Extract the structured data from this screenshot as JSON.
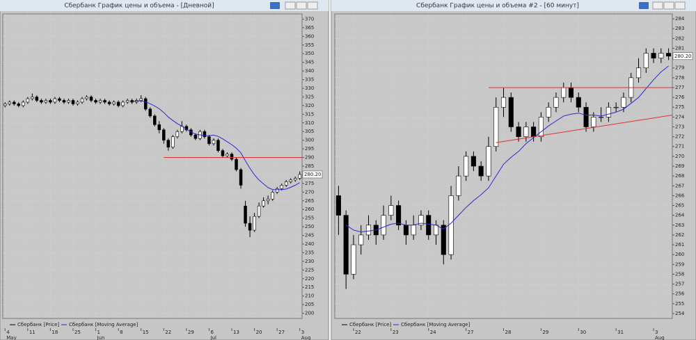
{
  "chart_data": [
    {
      "type": "candlestick",
      "title": "Сбербанк График цены и объема - [Дневной]",
      "ylim": [
        197,
        373
      ],
      "yticks": [
        370,
        365,
        360,
        355,
        350,
        345,
        340,
        335,
        330,
        325,
        320,
        315,
        310,
        305,
        300,
        295,
        290,
        285,
        280,
        275,
        270,
        265,
        260,
        255,
        250,
        245,
        240,
        235,
        230,
        225,
        220,
        215,
        210,
        205,
        200
      ],
      "grid": true,
      "xticks": [
        {
          "value": 0,
          "label": "4"
        },
        {
          "value": 5,
          "label": "11"
        },
        {
          "value": 10,
          "label": "18"
        },
        {
          "value": 15,
          "label": "25"
        },
        {
          "value": 20,
          "label": "1"
        },
        {
          "value": 25,
          "label": "8"
        },
        {
          "value": 30,
          "label": "15"
        },
        {
          "value": 35,
          "label": "22"
        },
        {
          "value": 40,
          "label": "29"
        },
        {
          "value": 45,
          "label": "6"
        },
        {
          "value": 50,
          "label": "13"
        },
        {
          "value": 55,
          "label": "20"
        },
        {
          "value": 60,
          "label": "27"
        },
        {
          "value": 65,
          "label": "3"
        }
      ],
      "xmonths": [
        {
          "value": 0,
          "label": "May"
        },
        {
          "value": 20,
          "label": "Jun"
        },
        {
          "value": 45,
          "label": "Jul"
        },
        {
          "value": 65,
          "label": "Aug"
        }
      ],
      "last_price": {
        "value": 280.2,
        "label": "280.20"
      },
      "series": [
        {
          "name": "Сбербанк [Price]",
          "color": "#000000",
          "ohlc": [
            [
              320,
              322,
              319,
              321
            ],
            [
              321,
              323,
              320,
              322
            ],
            [
              322,
              323,
              320,
              321
            ],
            [
              321,
              322,
              319,
              320
            ],
            [
              320,
              323,
              319,
              322
            ],
            [
              322,
              325,
              321,
              324
            ],
            [
              324,
              327,
              323,
              325
            ],
            [
              325,
              326,
              322,
              323
            ],
            [
              323,
              324,
              321,
              322
            ],
            [
              322,
              324,
              321,
              323
            ],
            [
              323,
              324,
              321,
              322
            ],
            [
              322,
              325,
              321,
              324
            ],
            [
              324,
              325,
              322,
              323
            ],
            [
              323,
              324,
              321,
              322
            ],
            [
              322,
              324,
              321,
              323
            ],
            [
              323,
              324,
              320,
              321
            ],
            [
              321,
              323,
              320,
              322
            ],
            [
              322,
              325,
              321,
              324
            ],
            [
              324,
              326,
              323,
              325
            ],
            [
              325,
              326,
              322,
              323
            ],
            [
              323,
              324,
              321,
              322
            ],
            [
              322,
              324,
              321,
              323
            ],
            [
              323,
              324,
              321,
              322
            ],
            [
              322,
              323,
              320,
              321
            ],
            [
              321,
              323,
              320,
              322
            ],
            [
              322,
              323,
              319,
              320
            ],
            [
              320,
              323,
              319,
              322
            ],
            [
              322,
              324,
              321,
              323
            ],
            [
              323,
              324,
              321,
              322
            ],
            [
              322,
              324,
              321,
              323
            ],
            [
              323,
              326,
              322,
              324
            ],
            [
              324,
              325,
              317,
              318
            ],
            [
              318,
              319,
              313,
              314
            ],
            [
              314,
              315,
              308,
              309
            ],
            [
              309,
              311,
              304,
              306
            ],
            [
              306,
              307,
              298,
              300
            ],
            [
              300,
              301,
              294,
              296
            ],
            [
              296,
              303,
              295,
              302
            ],
            [
              302,
              306,
              301,
              305
            ],
            [
              305,
              311,
              304,
              308
            ],
            [
              308,
              309,
              305,
              306
            ],
            [
              306,
              307,
              302,
              303
            ],
            [
              303,
              304,
              300,
              301
            ],
            [
              301,
              306,
              300,
              305
            ],
            [
              305,
              306,
              301,
              302
            ],
            [
              302,
              303,
              297,
              298
            ],
            [
              298,
              301,
              297,
              300
            ],
            [
              300,
              301,
              293,
              294
            ],
            [
              294,
              295,
              290,
              291
            ],
            [
              291,
              293,
              290,
              292
            ],
            [
              292,
              293,
              288,
              289
            ],
            [
              289,
              290,
              282,
              283
            ],
            [
              283,
              284,
              272,
              274
            ],
            [
              262,
              265,
              250,
              252
            ],
            [
              252,
              256,
              244,
              248
            ],
            [
              248,
              258,
              247,
              256
            ],
            [
              256,
              264,
              255,
              262
            ],
            [
              262,
              267,
              261,
              265
            ],
            [
              265,
              268,
              263,
              266
            ],
            [
              266,
              271,
              265,
              270
            ],
            [
              270,
              273,
              269,
              272
            ],
            [
              272,
              275,
              271,
              274
            ],
            [
              274,
              277,
              273,
              276
            ],
            [
              276,
              278,
              275,
              277
            ],
            [
              277,
              279,
              276,
              278
            ],
            [
              278,
              282,
              277,
              280.2
            ]
          ]
        },
        {
          "name": "Сбербанк [Moving Average]",
          "color": "#2a2ad0",
          "values": [
            null,
            null,
            null,
            null,
            null,
            null,
            null,
            null,
            null,
            null,
            null,
            null,
            null,
            null,
            null,
            null,
            null,
            null,
            null,
            null,
            null,
            null,
            null,
            null,
            null,
            null,
            null,
            null,
            322.5,
            322.6,
            322.8,
            322.2,
            321.1,
            319.8,
            318.2,
            316.0,
            313.4,
            311.4,
            309.6,
            308.1,
            306.3,
            304.8,
            303.5,
            303.1,
            302.7,
            302.6,
            303.0,
            302.2,
            300.8,
            299.1,
            297.4,
            295.4,
            292.7,
            288.1,
            283.8,
            280.0,
            277.0,
            274.8,
            272.6,
            271.5,
            271.4,
            271.5,
            271.8,
            272.8,
            274.0,
            275.5
          ]
        }
      ],
      "lines": [
        {
          "color": "#e03030",
          "x": [
            35,
            66
          ],
          "y": [
            290,
            290
          ]
        }
      ]
    },
    {
      "type": "candlestick",
      "title": "Сбербанк График цены и объема #2 - [60 минут]",
      "ylim": [
        253.5,
        284.5
      ],
      "yticks": [
        284,
        283,
        282,
        281,
        280,
        279,
        278,
        277,
        276,
        275,
        274,
        273,
        272,
        271,
        270,
        269,
        268,
        267,
        266,
        265,
        264,
        263,
        262,
        261,
        260,
        259,
        258,
        257,
        256,
        255,
        254
      ],
      "grid": true,
      "xticks": [
        {
          "value": 2,
          "label": "22"
        },
        {
          "value": 7,
          "label": "23"
        },
        {
          "value": 12,
          "label": "24"
        },
        {
          "value": 17,
          "label": "27"
        },
        {
          "value": 22,
          "label": "28"
        },
        {
          "value": 27,
          "label": "29"
        },
        {
          "value": 32,
          "label": "30"
        },
        {
          "value": 37,
          "label": "31"
        },
        {
          "value": 42,
          "label": "3"
        }
      ],
      "xmonths": [
        {
          "value": 42,
          "label": "Aug"
        }
      ],
      "last_price": {
        "value": 280.2,
        "label": "280.20"
      },
      "series": [
        {
          "name": "Сбербанк [Price]",
          "color": "#000000",
          "ohlc": [
            [
              266,
              267,
              262,
              264
            ],
            [
              264,
              264.5,
              256.5,
              258
            ],
            [
              258,
              262,
              257.5,
              261
            ],
            [
              261,
              263,
              260,
              262
            ],
            [
              262,
              264,
              261.5,
              263
            ],
            [
              263,
              263.5,
              261,
              262
            ],
            [
              262,
              265,
              261.5,
              264
            ],
            [
              264,
              266,
              263.5,
              265
            ],
            [
              265,
              265.5,
              262.5,
              263
            ],
            [
              263,
              263.5,
              261,
              262
            ],
            [
              262,
              264,
              261.5,
              263
            ],
            [
              263,
              264.5,
              262.5,
              264
            ],
            [
              264,
              264.5,
              261.5,
              262
            ],
            [
              262,
              263.5,
              261,
              263
            ],
            [
              263,
              263.5,
              259,
              260
            ],
            [
              260,
              267,
              259.5,
              266
            ],
            [
              266,
              269,
              265.5,
              268
            ],
            [
              268,
              270.5,
              267.5,
              270
            ],
            [
              270,
              270.5,
              268.5,
              269
            ],
            [
              269,
              269.5,
              267.5,
              268
            ],
            [
              268,
              272,
              267.5,
              271
            ],
            [
              271,
              276,
              270.5,
              275
            ],
            [
              275,
              277,
              274,
              276
            ],
            [
              276,
              276.5,
              272.5,
              273
            ],
            [
              273,
              273.5,
              271.5,
              272
            ],
            [
              272,
              273.5,
              271.5,
              273
            ],
            [
              273,
              273.5,
              271.5,
              272
            ],
            [
              272,
              274.5,
              271.5,
              274
            ],
            [
              274,
              275.5,
              273.5,
              275
            ],
            [
              275,
              276.5,
              274.5,
              276
            ],
            [
              276,
              277.5,
              275.5,
              277
            ],
            [
              277,
              277.5,
              275.5,
              276
            ],
            [
              276,
              276.5,
              274.5,
              275
            ],
            [
              275,
              275.5,
              272.5,
              273
            ],
            [
              273,
              274.5,
              272.5,
              274
            ],
            [
              274,
              275,
              273.5,
              274
            ],
            [
              274,
              275.5,
              273.5,
              275
            ],
            [
              275,
              275.5,
              274.5,
              275
            ],
            [
              275,
              276.5,
              274.5,
              276
            ],
            [
              276,
              278.5,
              275.5,
              278
            ],
            [
              278,
              280,
              277.5,
              279
            ],
            [
              279,
              281,
              278.5,
              280.5
            ],
            [
              280.5,
              281,
              279.5,
              280
            ],
            [
              280,
              281,
              279.5,
              280.5
            ],
            [
              280.5,
              281,
              279.8,
              280.2
            ]
          ]
        },
        {
          "name": "Сбербанк [Moving Average]",
          "color": "#2a2ad0",
          "values": [
            null,
            263.0,
            262.5,
            262.3,
            262.4,
            262.5,
            262.8,
            263.1,
            263.2,
            263.0,
            263.0,
            263.2,
            263.1,
            263.0,
            262.6,
            263.2,
            264.0,
            264.8,
            265.5,
            266.1,
            266.8,
            268.0,
            269.2,
            269.9,
            270.5,
            271.3,
            271.9,
            272.5,
            273.1,
            273.6,
            274.1,
            274.3,
            274.4,
            274.2,
            274.2,
            274.1,
            274.3,
            274.5,
            274.8,
            275.4,
            276.0,
            276.9,
            277.8,
            278.6,
            279.2
          ]
        }
      ],
      "lines": [
        {
          "color": "#e03030",
          "x": [
            20,
            45
          ],
          "y": [
            277,
            277
          ]
        },
        {
          "color": "#e03030",
          "x": [
            21,
            45
          ],
          "y": [
            271.4,
            274.2
          ]
        }
      ]
    }
  ]
}
